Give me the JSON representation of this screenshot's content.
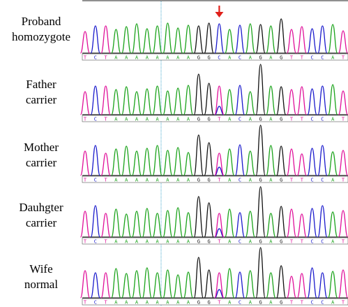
{
  "figure": {
    "bases": [
      "T",
      "C",
      "T",
      "A",
      "A",
      "A",
      "A",
      "A",
      "A",
      "A",
      "A",
      "G",
      "G",
      "C",
      "A",
      "C",
      "A",
      "G",
      "A",
      "G",
      "T",
      "T",
      "C",
      "C",
      "A",
      "T"
    ],
    "mutation_index": 13,
    "colors": {
      "A": "#1aa31a",
      "C": "#1a1acc",
      "G": "#111111",
      "T": "#e0109a",
      "arrow": "#e0201a",
      "guide": "#44aacc"
    },
    "panels": [
      {
        "line1": "Proband",
        "line2": "homozygote",
        "sequence": [
          "T",
          "C",
          "T",
          "A",
          "A",
          "A",
          "A",
          "A",
          "A",
          "A",
          "A",
          "G",
          "G",
          "C",
          "A",
          "C",
          "A",
          "G",
          "A",
          "G",
          "T",
          "T",
          "C",
          "C",
          "A",
          "T"
        ],
        "arrow": true
      },
      {
        "line1": "Father",
        "line2": "carrier",
        "sequence": [
          "T",
          "C",
          "T",
          "A",
          "A",
          "A",
          "A",
          "A",
          "A",
          "A",
          "A",
          "G",
          "G",
          "T",
          "A",
          "C",
          "A",
          "G",
          "A",
          "G",
          "T",
          "T",
          "C",
          "C",
          "A",
          "T"
        ],
        "arrow": false
      },
      {
        "line1": "Mother",
        "line2": "carrier",
        "sequence": [
          "T",
          "C",
          "T",
          "A",
          "A",
          "A",
          "A",
          "A",
          "A",
          "A",
          "A",
          "G",
          "G",
          "T",
          "A",
          "C",
          "A",
          "G",
          "A",
          "G",
          "T",
          "T",
          "C",
          "C",
          "A",
          "T"
        ],
        "arrow": false
      },
      {
        "line1": "Dauhgter",
        "line2": "carrier",
        "sequence": [
          "T",
          "C",
          "T",
          "A",
          "A",
          "A",
          "A",
          "A",
          "A",
          "A",
          "A",
          "G",
          "G",
          "T",
          "A",
          "C",
          "A",
          "G",
          "A",
          "G",
          "T",
          "T",
          "C",
          "C",
          "A",
          "T"
        ],
        "arrow": false
      },
      {
        "line1": "Wife",
        "line2": "normal",
        "sequence": [
          "T",
          "C",
          "T",
          "A",
          "A",
          "A",
          "A",
          "A",
          "A",
          "A",
          "A",
          "G",
          "G",
          "T",
          "A",
          "C",
          "A",
          "G",
          "A",
          "G",
          "T",
          "T",
          "C",
          "C",
          "A",
          "T"
        ],
        "arrow": false
      }
    ]
  }
}
